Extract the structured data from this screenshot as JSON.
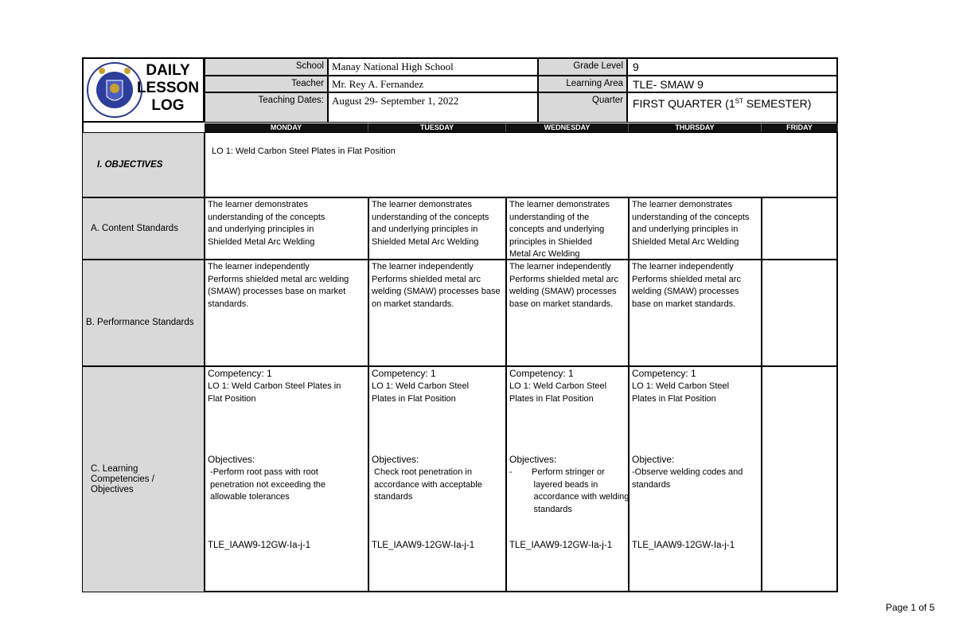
{
  "header": {
    "title_lines": [
      "DAILY",
      "LESSON",
      "LOG"
    ],
    "logo_text": "KAGAWARAN NG EDUKASYON - REPUBLIKA NG PILIPINAS",
    "school_label": "School",
    "school": "Manay National High School",
    "teacher_label": "Teacher",
    "teacher": "Mr. Rey A. Fernandez",
    "dates_label": "Teaching Dates:",
    "dates": "August 29- September 1, 2022",
    "grade_label": "Grade Level",
    "grade": "9",
    "area_label": "Learning Area",
    "area": "TLE- SMAW 9",
    "quarter_label": "Quarter",
    "quarter": "FIRST QUARTER (1",
    "quarter_sup": "ST",
    "quarter_end": " SEMESTER)"
  },
  "days": [
    "MONDAY",
    "TUESDAY",
    "WEDNESDAY",
    "THURSDAY",
    "FRIDAY"
  ],
  "rows": {
    "objectives": {
      "label": "I.  OBJECTIVES",
      "text": "LO 1: Weld Carbon Steel Plates in Flat Position"
    },
    "content": {
      "label": "A. Content Standards",
      "cells": [
        "The learner demonstrates\nunderstanding of the concepts\nand underlying principles in\nShielded Metal Arc Welding",
        "The learner demonstrates\nunderstanding of the concepts\nand underlying principles in\nShielded Metal Arc Welding",
        "The learner demonstrates\nunderstanding of the\nconcepts and underlying\nprinciples in Shielded\nMetal Arc Welding",
        "The learner demonstrates\nunderstanding of the concepts\nand underlying principles in\nShielded Metal Arc Welding",
        ""
      ]
    },
    "performance": {
      "label": "B. Performance Standards",
      "cells": [
        "The learner independently\nPerforms shielded metal arc welding\n(SMAW) processes base on market\nstandards.",
        "The learner independently\nPerforms shielded metal arc\nwelding (SMAW) processes base\non market standards.",
        "The learner independently\nPerforms shielded metal arc\nwelding (SMAW) processes\nbase on market standards.",
        "The learner independently\nPerforms shielded metal arc\nwelding (SMAW) processes\nbase on market standards.",
        ""
      ]
    },
    "competencies": {
      "label": "C. Learning\nCompetencies /\nObjectives",
      "cells": [
        {
          "head": "Competency: 1",
          "lo": " LO 1: Weld Carbon Steel Plates in\n Flat Position",
          "obj_head": "Objectives:",
          "obj": " -Perform root pass with root\n penetration not exceeding the\n allowable tolerances",
          "code": "TLE_IAAW9-12GW-Ia-j-1"
        },
        {
          "head": "Competency: 1",
          "lo": " LO 1: Weld Carbon Steel\n Plates in Flat Position",
          "obj_head": "Objectives:",
          "obj": " Check root penetration in\n accordance with acceptable\n standards",
          "code": "TLE_IAAW9-12GW-Ia-j-1"
        },
        {
          "head": "Competency: 1",
          "lo": " LO 1: Weld Carbon Steel\n Plates in Flat Position",
          "obj_head": "Objectives:",
          "obj": "-        Perform stringer or\n          layered beads in\n          accordance with welding\n          standards",
          "code": "TLE_IAAW9-12GW-Ia-j-1"
        },
        {
          "head": "Competency: 1",
          "lo": " LO 1: Weld Carbon Steel\n Plates in Flat Position",
          "obj_head": " Objective:",
          "obj": "-Observe welding codes and\nstandards",
          "code": "TLE_IAAW9-12GW-Ia-j-1"
        },
        {
          "head": "",
          "lo": "",
          "obj_head": "",
          "obj": "",
          "code": ""
        }
      ]
    }
  },
  "footer": {
    "page": "Page 1 of 5"
  }
}
